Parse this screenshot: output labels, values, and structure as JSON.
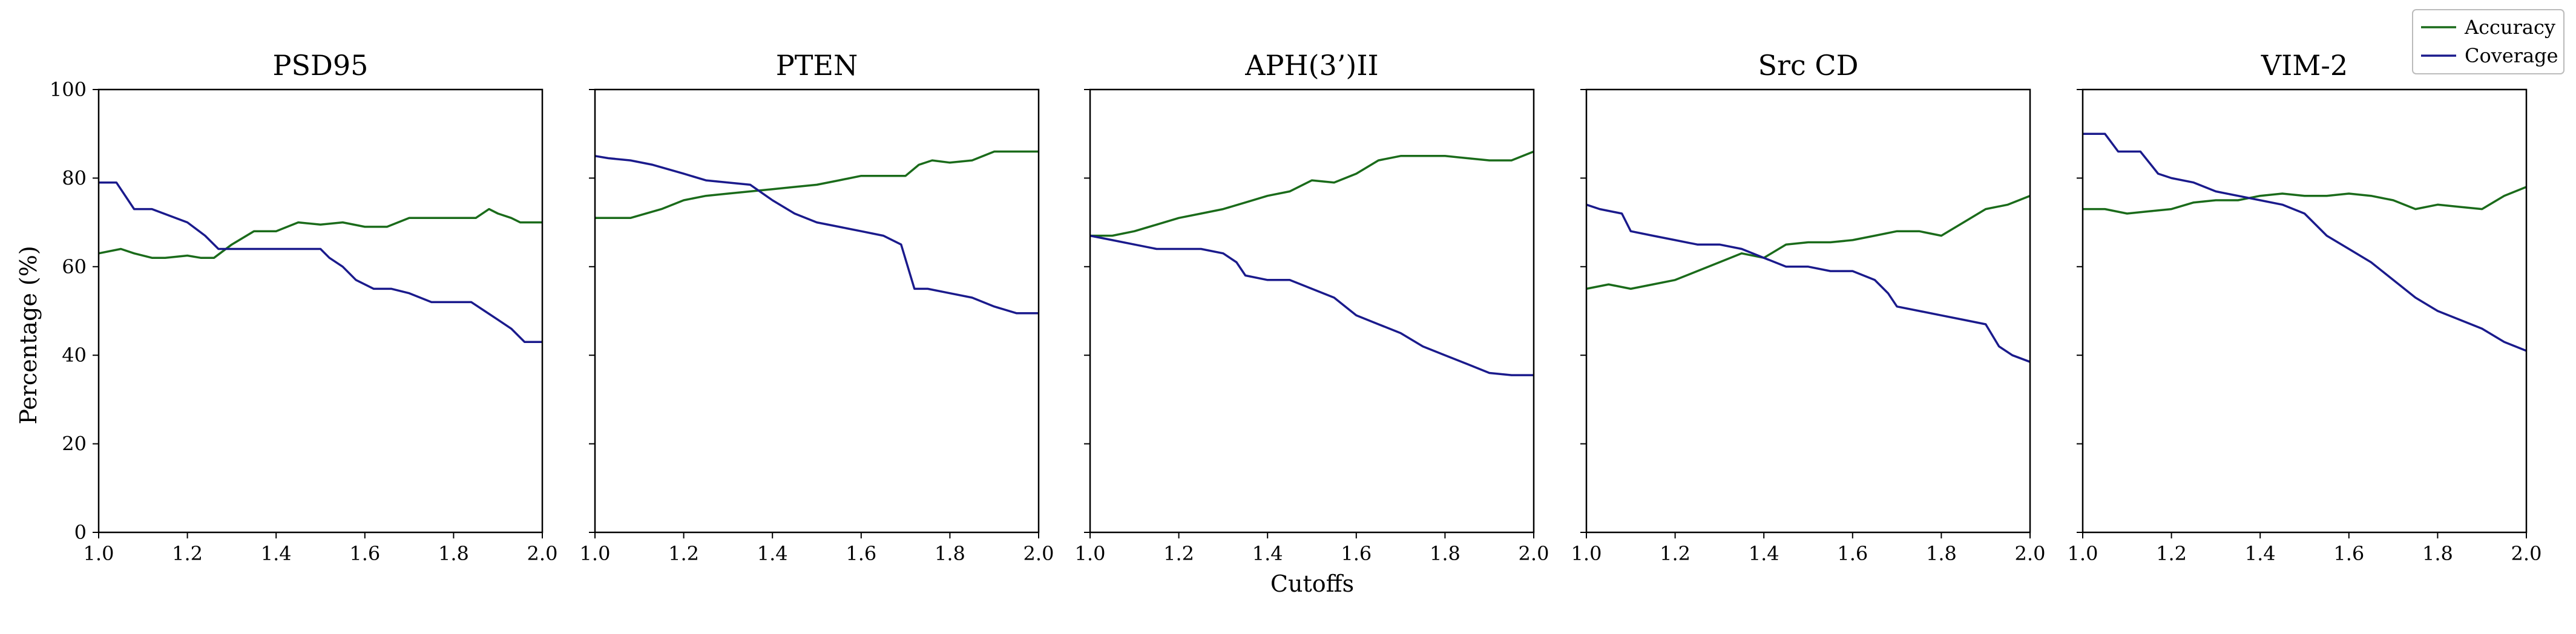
{
  "figure": {
    "xlabel": "Cutoffs",
    "ylabel": "Percentage (%)",
    "legend": {
      "placement": "top-right",
      "entries": [
        {
          "label": "Accuracy",
          "color": "#1a6b1a"
        },
        {
          "label": "Coverage",
          "color": "#1a1a8c"
        }
      ]
    }
  },
  "chart_data": [
    {
      "type": "line",
      "title": "PSD95",
      "xlim": [
        1.0,
        2.0
      ],
      "ylim": [
        0,
        100
      ],
      "xticks": [
        "1.0",
        "1.2",
        "1.4",
        "1.6",
        "1.8",
        "2.0"
      ],
      "yticks": [
        "0",
        "20",
        "40",
        "60",
        "80",
        "100"
      ],
      "series": [
        {
          "name": "Accuracy",
          "color": "#1a6b1a",
          "x": [
            1.0,
            1.05,
            1.08,
            1.12,
            1.15,
            1.2,
            1.23,
            1.26,
            1.3,
            1.35,
            1.4,
            1.45,
            1.5,
            1.55,
            1.6,
            1.65,
            1.7,
            1.75,
            1.8,
            1.85,
            1.88,
            1.9,
            1.93,
            1.95,
            2.0
          ],
          "y": [
            63,
            64,
            63,
            62,
            62,
            62.5,
            62,
            62,
            65,
            68,
            68,
            70,
            69.5,
            70,
            69,
            69,
            71,
            71,
            71,
            71,
            73,
            72,
            71,
            70,
            70
          ]
        },
        {
          "name": "Coverage",
          "color": "#1a1a8c",
          "x": [
            1.0,
            1.04,
            1.08,
            1.12,
            1.2,
            1.24,
            1.27,
            1.3,
            1.35,
            1.4,
            1.45,
            1.5,
            1.52,
            1.55,
            1.58,
            1.62,
            1.66,
            1.7,
            1.75,
            1.8,
            1.84,
            1.87,
            1.9,
            1.93,
            1.96,
            2.0
          ],
          "y": [
            79,
            79,
            73,
            73,
            70,
            67,
            64,
            64,
            64,
            64,
            64,
            64,
            62,
            60,
            57,
            55,
            55,
            54,
            52,
            52,
            52,
            50,
            48,
            46,
            43,
            43
          ]
        }
      ]
    },
    {
      "type": "line",
      "title": "PTEN",
      "xlim": [
        1.0,
        2.0
      ],
      "ylim": [
        0,
        100
      ],
      "xticks": [
        "1.0",
        "1.2",
        "1.4",
        "1.6",
        "1.8",
        "2.0"
      ],
      "yticks": [
        "0",
        "20",
        "40",
        "60",
        "80",
        "100"
      ],
      "series": [
        {
          "name": "Accuracy",
          "color": "#1a6b1a",
          "x": [
            1.0,
            1.08,
            1.15,
            1.2,
            1.25,
            1.3,
            1.35,
            1.4,
            1.45,
            1.5,
            1.55,
            1.6,
            1.65,
            1.7,
            1.73,
            1.76,
            1.8,
            1.85,
            1.9,
            1.95,
            2.0
          ],
          "y": [
            71,
            71,
            73,
            75,
            76,
            76.5,
            77,
            77.5,
            78,
            78.5,
            79.5,
            80.5,
            80.5,
            80.5,
            83,
            84,
            83.5,
            84,
            86,
            86,
            86
          ]
        },
        {
          "name": "Coverage",
          "color": "#1a1a8c",
          "x": [
            1.0,
            1.03,
            1.08,
            1.13,
            1.2,
            1.25,
            1.3,
            1.35,
            1.4,
            1.45,
            1.5,
            1.55,
            1.6,
            1.65,
            1.69,
            1.72,
            1.75,
            1.8,
            1.85,
            1.9,
            1.95,
            2.0
          ],
          "y": [
            85,
            84.5,
            84,
            83,
            81,
            79.5,
            79,
            78.5,
            75,
            72,
            70,
            69,
            68,
            67,
            65,
            55,
            55,
            54,
            53,
            51,
            49.5,
            49.5
          ]
        }
      ]
    },
    {
      "type": "line",
      "title": "APH(3’)II",
      "xlim": [
        1.0,
        2.0
      ],
      "ylim": [
        0,
        100
      ],
      "xticks": [
        "1.0",
        "1.2",
        "1.4",
        "1.6",
        "1.8",
        "2.0"
      ],
      "yticks": [
        "0",
        "20",
        "40",
        "60",
        "80",
        "100"
      ],
      "series": [
        {
          "name": "Accuracy",
          "color": "#1a6b1a",
          "x": [
            1.0,
            1.05,
            1.1,
            1.15,
            1.2,
            1.25,
            1.3,
            1.35,
            1.4,
            1.45,
            1.5,
            1.55,
            1.6,
            1.65,
            1.7,
            1.75,
            1.8,
            1.85,
            1.9,
            1.95,
            2.0
          ],
          "y": [
            67,
            67,
            68,
            69.5,
            71,
            72,
            73,
            74.5,
            76,
            77,
            79.5,
            79,
            81,
            84,
            85,
            85,
            85,
            84.5,
            84,
            84,
            86
          ]
        },
        {
          "name": "Coverage",
          "color": "#1a1a8c",
          "x": [
            1.0,
            1.05,
            1.1,
            1.15,
            1.2,
            1.25,
            1.3,
            1.33,
            1.35,
            1.4,
            1.45,
            1.5,
            1.55,
            1.6,
            1.65,
            1.7,
            1.75,
            1.8,
            1.85,
            1.9,
            1.95,
            2.0
          ],
          "y": [
            67,
            66,
            65,
            64,
            64,
            64,
            63,
            61,
            58,
            57,
            57,
            55,
            53,
            49,
            47,
            45,
            42,
            40,
            38,
            36,
            35.5,
            35.5
          ]
        }
      ]
    },
    {
      "type": "line",
      "title": "Src CD",
      "xlim": [
        1.0,
        2.0
      ],
      "ylim": [
        0,
        100
      ],
      "xticks": [
        "1.0",
        "1.2",
        "1.4",
        "1.6",
        "1.8",
        "2.0"
      ],
      "yticks": [
        "0",
        "20",
        "40",
        "60",
        "80",
        "100"
      ],
      "series": [
        {
          "name": "Accuracy",
          "color": "#1a6b1a",
          "x": [
            1.0,
            1.05,
            1.1,
            1.15,
            1.2,
            1.25,
            1.3,
            1.35,
            1.4,
            1.45,
            1.5,
            1.55,
            1.6,
            1.65,
            1.7,
            1.75,
            1.8,
            1.85,
            1.9,
            1.95,
            2.0
          ],
          "y": [
            55,
            56,
            55,
            56,
            57,
            59,
            61,
            63,
            62,
            65,
            65.5,
            65.5,
            66,
            67,
            68,
            68,
            67,
            70,
            73,
            74,
            76
          ]
        },
        {
          "name": "Coverage",
          "color": "#1a1a8c",
          "x": [
            1.0,
            1.03,
            1.08,
            1.1,
            1.15,
            1.2,
            1.25,
            1.3,
            1.35,
            1.4,
            1.45,
            1.5,
            1.55,
            1.6,
            1.65,
            1.68,
            1.7,
            1.75,
            1.8,
            1.85,
            1.9,
            1.93,
            1.96,
            2.0
          ],
          "y": [
            74,
            73,
            72,
            68,
            67,
            66,
            65,
            65,
            64,
            62,
            60,
            60,
            59,
            59,
            57,
            54,
            51,
            50,
            49,
            48,
            47,
            42,
            40,
            38.5
          ]
        }
      ]
    },
    {
      "type": "line",
      "title": "VIM-2",
      "xlim": [
        1.0,
        2.0
      ],
      "ylim": [
        0,
        100
      ],
      "xticks": [
        "1.0",
        "1.2",
        "1.4",
        "1.6",
        "1.8",
        "2.0"
      ],
      "yticks": [
        "0",
        "20",
        "40",
        "60",
        "80",
        "100"
      ],
      "series": [
        {
          "name": "Accuracy",
          "color": "#1a6b1a",
          "x": [
            1.0,
            1.05,
            1.1,
            1.15,
            1.2,
            1.25,
            1.3,
            1.35,
            1.4,
            1.45,
            1.5,
            1.55,
            1.6,
            1.65,
            1.7,
            1.75,
            1.8,
            1.85,
            1.9,
            1.95,
            2.0
          ],
          "y": [
            73,
            73,
            72,
            72.5,
            73,
            74.5,
            75,
            75,
            76,
            76.5,
            76,
            76,
            76.5,
            76,
            75,
            73,
            74,
            73.5,
            73,
            76,
            78
          ]
        },
        {
          "name": "Coverage",
          "color": "#1a1a8c",
          "x": [
            1.0,
            1.05,
            1.08,
            1.13,
            1.17,
            1.2,
            1.25,
            1.3,
            1.35,
            1.4,
            1.45,
            1.5,
            1.55,
            1.6,
            1.65,
            1.7,
            1.75,
            1.8,
            1.85,
            1.9,
            1.95,
            2.0
          ],
          "y": [
            90,
            90,
            86,
            86,
            81,
            80,
            79,
            77,
            76,
            75,
            74,
            72,
            67,
            64,
            61,
            57,
            53,
            50,
            48,
            46,
            43,
            41
          ]
        }
      ]
    }
  ]
}
